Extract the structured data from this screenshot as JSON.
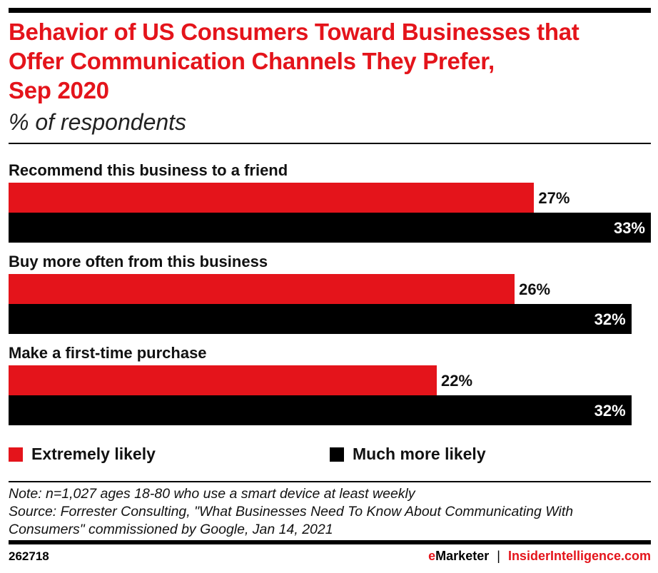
{
  "chart_data": {
    "type": "bar",
    "orientation": "horizontal",
    "title": "Behavior of US Consumers Toward Businesses that Offer Communication Channels They Prefer, Sep 2020",
    "subtitle": "% of respondents",
    "categories": [
      "Recommend this business to a friend",
      "Buy more often from this business",
      "Make a first-time purchase"
    ],
    "series": [
      {
        "name": "Extremely likely",
        "color": "#e4141b",
        "values": [
          27,
          26,
          22
        ],
        "labels": [
          "27%",
          "26%",
          "22%"
        ]
      },
      {
        "name": "Much more likely",
        "color": "#000000",
        "values": [
          33,
          32,
          32
        ],
        "labels": [
          "33%",
          "32%",
          "32%"
        ]
      }
    ],
    "xlim": [
      0,
      33
    ],
    "grid": false,
    "legend_position": "bottom"
  },
  "title_lines": [
    "Behavior of US Consumers Toward Businesses that",
    "Offer Communication Channels They Prefer,",
    "Sep 2020"
  ],
  "note": "Note: n=1,027 ages 18-80 who use a smart device at least weekly",
  "source_lines": [
    "Source: Forrester Consulting, \"What Businesses Need To Know About Communicating With",
    "Consumers\" commissioned by Google, Jan 14, 2021"
  ],
  "chart_id": "262718",
  "brand": {
    "e": "e",
    "marketer": "Marketer",
    "sep": "|",
    "site": "InsiderIntelligence.com"
  }
}
